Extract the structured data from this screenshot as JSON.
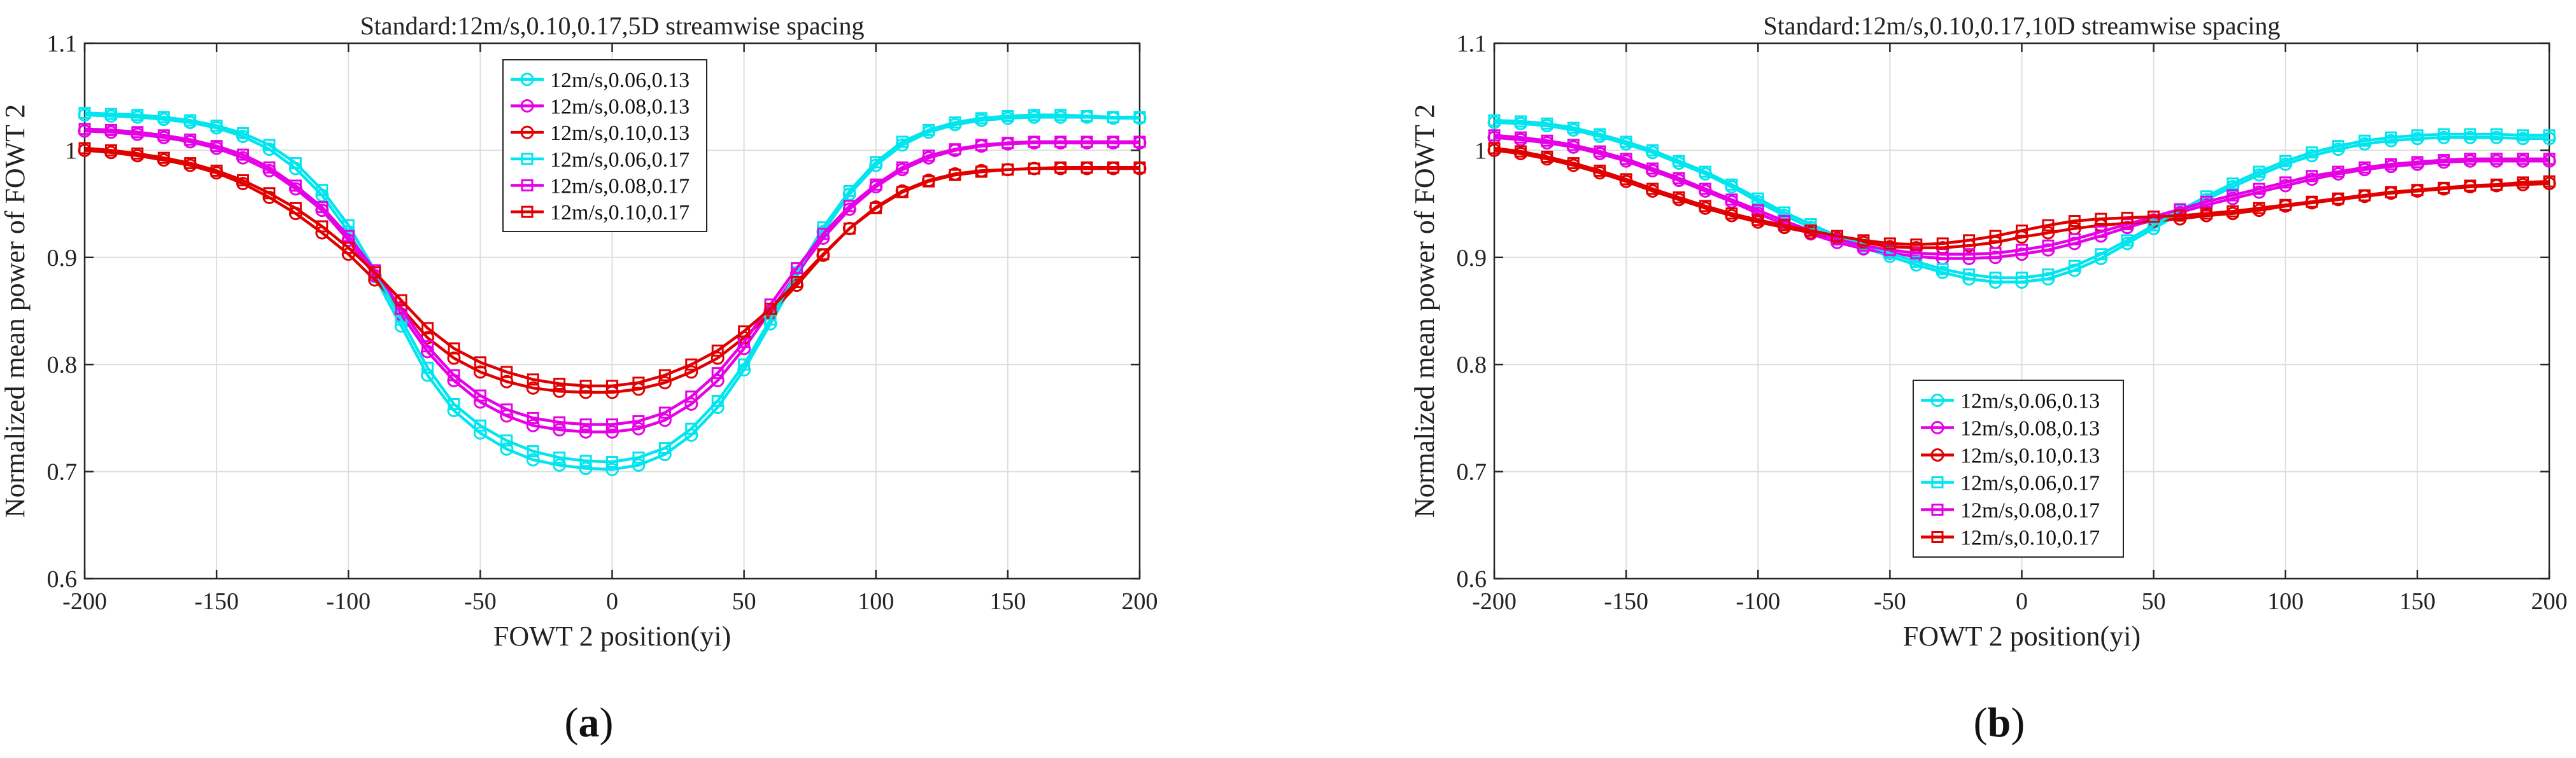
{
  "chart_data": [
    {
      "panel_id": "a",
      "type": "line",
      "title": "Standard:12m/s,0.10,0.17,5D streamwise spacing",
      "xlabel": "FOWT 2 position(yi)",
      "ylabel": "Normalized mean power of FOWT 2",
      "xlim": [
        -200,
        200
      ],
      "ylim": [
        0.6,
        1.1
      ],
      "xticks": [
        -200,
        -150,
        -100,
        -50,
        0,
        50,
        100,
        150,
        200
      ],
      "yticks": [
        0.6,
        0.7,
        0.8,
        0.9,
        1.0,
        1.1
      ],
      "ytick_labels": [
        "0.6",
        "0.7",
        "0.8",
        "0.9",
        "1",
        "1.1"
      ],
      "grid": true,
      "legend_position": "top-center",
      "caption": "a",
      "x": [
        -200,
        -190,
        -180,
        -170,
        -160,
        -150,
        -140,
        -130,
        -120,
        -110,
        -100,
        -90,
        -80,
        -70,
        -60,
        -50,
        -40,
        -30,
        -20,
        -10,
        0,
        10,
        20,
        30,
        40,
        50,
        60,
        70,
        80,
        90,
        100,
        110,
        120,
        130,
        140,
        150,
        160,
        170,
        180,
        190,
        200
      ],
      "series": [
        {
          "name": "12m/s,0.06,0.13",
          "color": "#00e5ee",
          "marker": "circle",
          "values": [
            1.033,
            1.032,
            1.031,
            1.029,
            1.026,
            1.021,
            1.013,
            1.001,
            0.983,
            0.958,
            0.924,
            0.882,
            0.836,
            0.79,
            0.757,
            0.736,
            0.721,
            0.711,
            0.706,
            0.703,
            0.702,
            0.706,
            0.716,
            0.734,
            0.76,
            0.795,
            0.838,
            0.882,
            0.924,
            0.959,
            0.986,
            1.005,
            1.017,
            1.024,
            1.028,
            1.03,
            1.031,
            1.031,
            1.031,
            1.03,
            1.03
          ]
        },
        {
          "name": "12m/s,0.08,0.13",
          "color": "#e600e6",
          "marker": "circle",
          "values": [
            1.018,
            1.017,
            1.015,
            1.012,
            1.008,
            1.002,
            0.993,
            0.981,
            0.964,
            0.944,
            0.916,
            0.883,
            0.847,
            0.812,
            0.785,
            0.765,
            0.752,
            0.743,
            0.739,
            0.737,
            0.737,
            0.74,
            0.748,
            0.763,
            0.785,
            0.815,
            0.85,
            0.885,
            0.918,
            0.945,
            0.966,
            0.982,
            0.993,
            1.0,
            1.004,
            1.006,
            1.007,
            1.007,
            1.007,
            1.007,
            1.007
          ]
        },
        {
          "name": "12m/s,0.10,0.13",
          "color": "#e00000",
          "marker": "circle",
          "values": [
            1.0,
            0.998,
            0.995,
            0.991,
            0.986,
            0.979,
            0.969,
            0.956,
            0.941,
            0.923,
            0.903,
            0.879,
            0.853,
            0.825,
            0.806,
            0.793,
            0.784,
            0.778,
            0.775,
            0.774,
            0.774,
            0.777,
            0.783,
            0.793,
            0.806,
            0.825,
            0.848,
            0.874,
            0.902,
            0.927,
            0.947,
            0.962,
            0.972,
            0.978,
            0.981,
            0.982,
            0.983,
            0.983,
            0.983,
            0.983,
            0.983
          ]
        },
        {
          "name": "12m/s,0.06,0.17",
          "color": "#00e5ee",
          "marker": "square",
          "values": [
            1.035,
            1.034,
            1.033,
            1.031,
            1.028,
            1.023,
            1.016,
            1.005,
            0.988,
            0.963,
            0.93,
            0.888,
            0.842,
            0.797,
            0.763,
            0.743,
            0.729,
            0.719,
            0.713,
            0.71,
            0.709,
            0.713,
            0.722,
            0.74,
            0.766,
            0.8,
            0.842,
            0.886,
            0.928,
            0.962,
            0.989,
            1.008,
            1.019,
            1.026,
            1.03,
            1.032,
            1.033,
            1.033,
            1.032,
            1.031,
            1.031
          ]
        },
        {
          "name": "12m/s,0.08,0.17",
          "color": "#e600e6",
          "marker": "square",
          "values": [
            1.02,
            1.019,
            1.017,
            1.014,
            1.01,
            1.004,
            0.996,
            0.984,
            0.967,
            0.947,
            0.92,
            0.888,
            0.852,
            0.817,
            0.79,
            0.771,
            0.758,
            0.75,
            0.746,
            0.744,
            0.744,
            0.747,
            0.755,
            0.77,
            0.792,
            0.821,
            0.856,
            0.89,
            0.922,
            0.948,
            0.968,
            0.984,
            0.995,
            1.001,
            1.005,
            1.007,
            1.008,
            1.008,
            1.008,
            1.008,
            1.008
          ]
        },
        {
          "name": "12m/s,0.10,0.17",
          "color": "#e00000",
          "marker": "square",
          "values": [
            1.002,
            1.0,
            0.997,
            0.993,
            0.988,
            0.981,
            0.972,
            0.96,
            0.946,
            0.929,
            0.909,
            0.886,
            0.86,
            0.834,
            0.815,
            0.802,
            0.793,
            0.786,
            0.782,
            0.78,
            0.78,
            0.783,
            0.79,
            0.8,
            0.813,
            0.831,
            0.852,
            0.877,
            0.903,
            0.927,
            0.946,
            0.961,
            0.971,
            0.977,
            0.98,
            0.982,
            0.983,
            0.984,
            0.984,
            0.984,
            0.984
          ]
        }
      ]
    },
    {
      "panel_id": "b",
      "type": "line",
      "title": "Standard:12m/s,0.10,0.17,10D streamwise spacing",
      "xlabel": "FOWT 2 position(yi)",
      "ylabel": "Normalized mean power of FOWT 2",
      "xlim": [
        -200,
        200
      ],
      "ylim": [
        0.6,
        1.1
      ],
      "xticks": [
        -200,
        -150,
        -100,
        -50,
        0,
        50,
        100,
        150,
        200
      ],
      "yticks": [
        0.6,
        0.7,
        0.8,
        0.9,
        1.0,
        1.1
      ],
      "ytick_labels": [
        "0.6",
        "0.7",
        "0.8",
        "0.9",
        "1",
        "1.1"
      ],
      "grid": true,
      "legend_position": "bottom-center",
      "caption": "b",
      "x": [
        -200,
        -190,
        -180,
        -170,
        -160,
        -150,
        -140,
        -130,
        -120,
        -110,
        -100,
        -90,
        -80,
        -70,
        -60,
        -50,
        -40,
        -30,
        -20,
        -10,
        0,
        10,
        20,
        30,
        40,
        50,
        60,
        70,
        80,
        90,
        100,
        110,
        120,
        130,
        140,
        150,
        160,
        170,
        180,
        190,
        200
      ],
      "series": [
        {
          "name": "12m/s,0.06,0.13",
          "color": "#00e5ee",
          "marker": "circle",
          "values": [
            1.026,
            1.025,
            1.023,
            1.019,
            1.013,
            1.006,
            0.998,
            0.988,
            0.978,
            0.966,
            0.952,
            0.939,
            0.928,
            0.917,
            0.909,
            0.901,
            0.893,
            0.886,
            0.88,
            0.877,
            0.877,
            0.88,
            0.888,
            0.899,
            0.913,
            0.927,
            0.941,
            0.954,
            0.966,
            0.977,
            0.987,
            0.995,
            1.001,
            1.006,
            1.009,
            1.011,
            1.012,
            1.012,
            1.012,
            1.011,
            1.011
          ]
        },
        {
          "name": "12m/s,0.08,0.13",
          "color": "#e600e6",
          "marker": "circle",
          "values": [
            1.012,
            1.01,
            1.007,
            1.003,
            0.997,
            0.99,
            0.981,
            0.972,
            0.962,
            0.952,
            0.941,
            0.931,
            0.922,
            0.914,
            0.908,
            0.904,
            0.901,
            0.899,
            0.899,
            0.9,
            0.903,
            0.907,
            0.913,
            0.92,
            0.928,
            0.935,
            0.942,
            0.949,
            0.955,
            0.961,
            0.967,
            0.973,
            0.978,
            0.982,
            0.985,
            0.987,
            0.989,
            0.99,
            0.99,
            0.99,
            0.99
          ]
        },
        {
          "name": "12m/s,0.10,0.13",
          "color": "#e00000",
          "marker": "circle",
          "values": [
            1.0,
            0.997,
            0.992,
            0.986,
            0.979,
            0.971,
            0.962,
            0.954,
            0.946,
            0.939,
            0.933,
            0.928,
            0.923,
            0.918,
            0.914,
            0.91,
            0.909,
            0.909,
            0.911,
            0.914,
            0.919,
            0.923,
            0.927,
            0.93,
            0.932,
            0.934,
            0.936,
            0.939,
            0.941,
            0.944,
            0.948,
            0.951,
            0.954,
            0.957,
            0.96,
            0.962,
            0.964,
            0.966,
            0.967,
            0.968,
            0.969
          ]
        },
        {
          "name": "12m/s,0.06,0.17",
          "color": "#00e5ee",
          "marker": "square",
          "values": [
            1.028,
            1.027,
            1.025,
            1.021,
            1.015,
            1.008,
            1.0,
            0.99,
            0.98,
            0.968,
            0.955,
            0.942,
            0.931,
            0.92,
            0.912,
            0.904,
            0.896,
            0.889,
            0.884,
            0.881,
            0.881,
            0.884,
            0.892,
            0.903,
            0.916,
            0.93,
            0.944,
            0.957,
            0.969,
            0.98,
            0.99,
            0.998,
            1.004,
            1.009,
            1.012,
            1.014,
            1.015,
            1.015,
            1.015,
            1.014,
            1.014
          ]
        },
        {
          "name": "12m/s,0.08,0.17",
          "color": "#e600e6",
          "marker": "square",
          "values": [
            1.014,
            1.012,
            1.009,
            1.005,
            0.999,
            0.992,
            0.983,
            0.974,
            0.964,
            0.954,
            0.944,
            0.934,
            0.925,
            0.917,
            0.911,
            0.907,
            0.904,
            0.903,
            0.903,
            0.904,
            0.907,
            0.911,
            0.917,
            0.924,
            0.931,
            0.938,
            0.945,
            0.952,
            0.958,
            0.964,
            0.97,
            0.976,
            0.98,
            0.984,
            0.987,
            0.989,
            0.991,
            0.992,
            0.992,
            0.992,
            0.992
          ]
        },
        {
          "name": "12m/s,0.10,0.17",
          "color": "#e00000",
          "marker": "square",
          "values": [
            1.002,
            0.999,
            0.994,
            0.988,
            0.981,
            0.973,
            0.964,
            0.956,
            0.948,
            0.941,
            0.935,
            0.93,
            0.925,
            0.92,
            0.916,
            0.913,
            0.912,
            0.913,
            0.916,
            0.92,
            0.925,
            0.93,
            0.934,
            0.936,
            0.937,
            0.938,
            0.939,
            0.941,
            0.943,
            0.946,
            0.949,
            0.952,
            0.955,
            0.958,
            0.961,
            0.963,
            0.965,
            0.967,
            0.968,
            0.97,
            0.971
          ]
        }
      ]
    }
  ]
}
